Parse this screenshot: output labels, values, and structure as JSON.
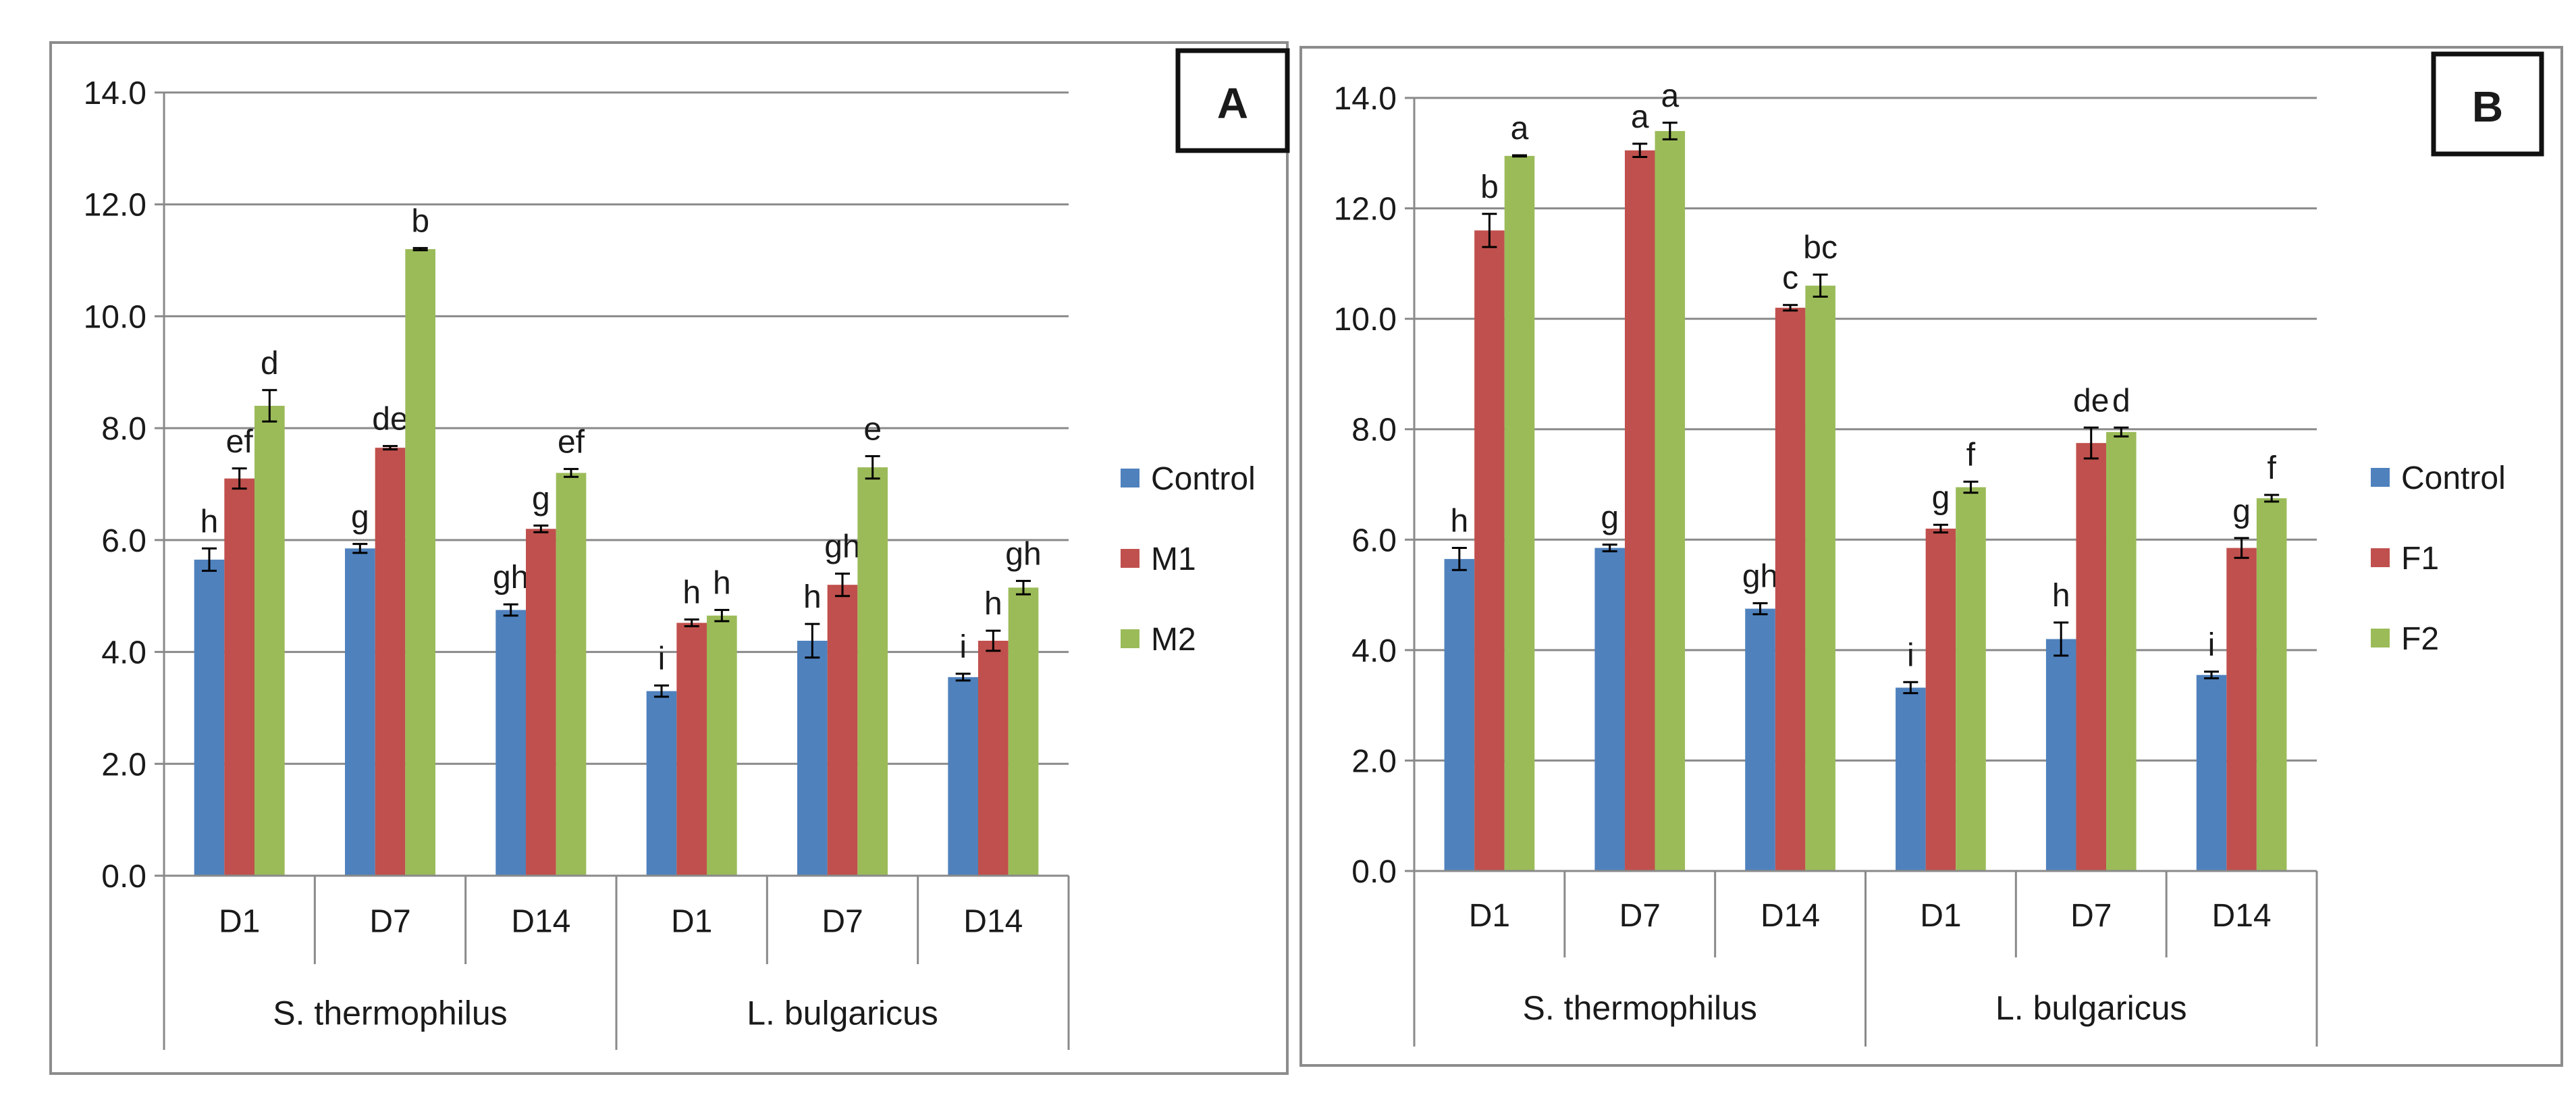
{
  "chart_data": [
    {
      "type": "bar",
      "panel_label": "A",
      "categories": [
        "D1",
        "D7",
        "D14",
        "D1",
        "D7",
        "D14"
      ],
      "groups": [
        {
          "name": "S. thermophilus",
          "span": 3
        },
        {
          "name": "L. bulgaricus",
          "span": 3
        }
      ],
      "series": [
        {
          "name": "Control",
          "color": "#4F81BD",
          "values": [
            5.65,
            5.85,
            4.75,
            3.3,
            4.2,
            3.55
          ],
          "errors": [
            0.2,
            0.08,
            0.1,
            0.1,
            0.3,
            0.06
          ],
          "letters": [
            "h",
            "g",
            "gh",
            "i",
            "h",
            "i"
          ]
        },
        {
          "name": "M1",
          "color": "#C0504D",
          "values": [
            7.1,
            7.65,
            6.2,
            4.52,
            5.2,
            4.2
          ],
          "errors": [
            0.18,
            0.03,
            0.06,
            0.06,
            0.2,
            0.18
          ],
          "letters": [
            "ef",
            "de",
            "g",
            "h",
            "gh",
            "h"
          ]
        },
        {
          "name": "M2",
          "color": "#9BBB59",
          "values": [
            8.4,
            11.2,
            7.2,
            4.65,
            7.3,
            5.15
          ],
          "errors": [
            0.28,
            0.02,
            0.07,
            0.1,
            0.2,
            0.12
          ],
          "letters": [
            "d",
            "b",
            "ef",
            "h",
            "e",
            "gh"
          ]
        }
      ],
      "ylim": [
        0,
        14
      ],
      "yticks": [
        "0.0",
        "2.0",
        "4.0",
        "6.0",
        "8.0",
        "10.0",
        "12.0",
        "14.0"
      ],
      "grid": true,
      "legend": "right"
    },
    {
      "type": "bar",
      "panel_label": "B",
      "categories": [
        "D1",
        "D7",
        "D14",
        "D1",
        "D7",
        "D14"
      ],
      "groups": [
        {
          "name": "S. thermophilus",
          "span": 3
        },
        {
          "name": "L. bulgaricus",
          "span": 3
        }
      ],
      "series": [
        {
          "name": "Control",
          "color": "#4F81BD",
          "values": [
            5.65,
            5.85,
            4.75,
            3.32,
            4.2,
            3.55
          ],
          "errors": [
            0.2,
            0.06,
            0.1,
            0.1,
            0.3,
            0.06
          ],
          "letters": [
            "h",
            "g",
            "gh",
            "i",
            "h",
            "i"
          ]
        },
        {
          "name": "F1",
          "color": "#C0504D",
          "values": [
            11.6,
            13.05,
            10.2,
            6.2,
            7.75,
            5.85
          ],
          "errors": [
            0.3,
            0.12,
            0.05,
            0.07,
            0.28,
            0.18
          ],
          "letters": [
            "b",
            "a",
            "c",
            "g",
            "de",
            "g"
          ]
        },
        {
          "name": "F2",
          "color": "#9BBB59",
          "values": [
            12.95,
            13.4,
            10.6,
            6.95,
            7.95,
            6.75
          ],
          "errors": [
            0.01,
            0.15,
            0.2,
            0.1,
            0.08,
            0.06
          ],
          "letters": [
            "a",
            "a",
            "bc",
            "f",
            "d",
            "f"
          ]
        }
      ],
      "ylim": [
        0,
        14
      ],
      "yticks": [
        "0.0",
        "2.0",
        "4.0",
        "6.0",
        "8.0",
        "10.0",
        "12.0",
        "14.0"
      ],
      "grid": true,
      "legend": "right"
    }
  ]
}
